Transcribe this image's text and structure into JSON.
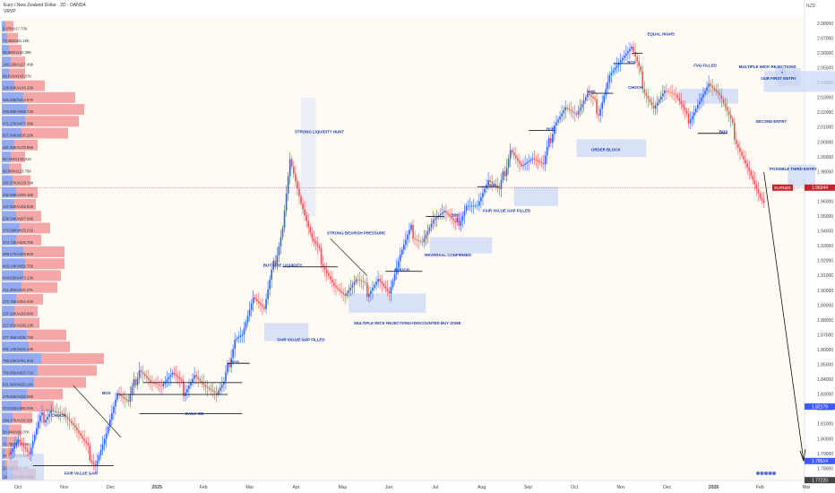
{
  "header": {
    "title": "Euro / New Zealand Dollar · 2D · OANDA",
    "indicator": "VRVP",
    "currency": "NZD"
  },
  "colors": {
    "bull": "#2962ff",
    "bear": "#ef5350",
    "zone": "#c9d6f6",
    "vp_bull": "#6f8ff0",
    "vp_bear": "#f28b8e",
    "price_tag": "#c8222b",
    "last_tag": "#3d5afe"
  },
  "chart_data": {
    "type": "candlestick",
    "instrument": "EURNZD",
    "timeframe": "2D",
    "ylim": [
      1.772,
      2.085
    ],
    "y_ticks": [
      1.78,
      1.79,
      1.8,
      1.81,
      1.82,
      1.83,
      1.84,
      1.85,
      1.86,
      1.87,
      1.88,
      1.89,
      1.9,
      1.91,
      1.92,
      1.93,
      1.94,
      1.95,
      1.96,
      1.97,
      1.98,
      1.99,
      2.0,
      2.01,
      2.02,
      2.03,
      2.04,
      2.05,
      2.06,
      2.07,
      2.08
    ],
    "x_labels": [
      "Oct",
      "Nov",
      "Dec",
      "2025",
      "Feb",
      "Mar",
      "Apr",
      "May",
      "Jun",
      "Jul",
      "Aug",
      "Sep",
      "Oct",
      "Nov",
      "Dec",
      "2026",
      "Feb",
      "Mar"
    ],
    "price_tags": [
      {
        "label": "EURNZD",
        "value": "1.96944",
        "price": 1.9694
      },
      {
        "label": "",
        "value": "1.82179",
        "price": 1.8218
      },
      {
        "label": "",
        "value": "1.78514",
        "price": 1.7851
      },
      {
        "label": "",
        "value": "1.77220",
        "price": 1.7722
      }
    ],
    "ohlc_anchors": [
      [
        0,
        1.79
      ],
      [
        6,
        1.8
      ],
      [
        12,
        1.788
      ],
      [
        18,
        1.812
      ],
      [
        24,
        1.822
      ],
      [
        30,
        1.818
      ],
      [
        36,
        1.808
      ],
      [
        42,
        1.795
      ],
      [
        48,
        1.785
      ],
      [
        54,
        1.805
      ],
      [
        60,
        1.83
      ],
      [
        66,
        1.822
      ],
      [
        72,
        1.85
      ],
      [
        78,
        1.84
      ],
      [
        84,
        1.835
      ],
      [
        90,
        1.842
      ],
      [
        96,
        1.833
      ],
      [
        102,
        1.845
      ],
      [
        108,
        1.835
      ],
      [
        114,
        1.828
      ],
      [
        118,
        1.835
      ],
      [
        124,
        1.87
      ],
      [
        128,
        1.872
      ],
      [
        134,
        1.895
      ],
      [
        140,
        1.885
      ],
      [
        144,
        1.91
      ],
      [
        150,
        1.945
      ],
      [
        154,
        1.99
      ],
      [
        160,
        1.958
      ],
      [
        166,
        1.932
      ],
      [
        172,
        1.92
      ],
      [
        178,
        1.905
      ],
      [
        184,
        1.896
      ],
      [
        190,
        1.905
      ],
      [
        196,
        1.9
      ],
      [
        202,
        1.91
      ],
      [
        208,
        1.898
      ],
      [
        214,
        1.922
      ],
      [
        220,
        1.94
      ],
      [
        226,
        1.935
      ],
      [
        232,
        1.948
      ],
      [
        238,
        1.952
      ],
      [
        244,
        1.942
      ],
      [
        250,
        1.96
      ],
      [
        256,
        1.958
      ],
      [
        262,
        1.973
      ],
      [
        268,
        1.965
      ],
      [
        274,
        1.998
      ],
      [
        280,
        1.985
      ],
      [
        286,
        1.988
      ],
      [
        292,
        1.982
      ],
      [
        298,
        2.015
      ],
      [
        304,
        2.025
      ],
      [
        310,
        2.018
      ],
      [
        316,
        2.03
      ],
      [
        322,
        2.022
      ],
      [
        328,
        2.047
      ],
      [
        334,
        2.055
      ],
      [
        340,
        2.062
      ],
      [
        346,
        2.04
      ],
      [
        352,
        2.025
      ],
      [
        358,
        2.035
      ],
      [
        364,
        2.03
      ],
      [
        370,
        2.015
      ],
      [
        376,
        2.028
      ],
      [
        382,
        2.04
      ],
      [
        388,
        2.03
      ],
      [
        394,
        2.012
      ],
      [
        398,
        2.0
      ],
      [
        404,
        1.982
      ],
      [
        410,
        1.962
      ],
      [
        412,
        1.958
      ]
    ],
    "volume_profile": [
      {
        "price": 2.078,
        "label": "9.87K/v17.73K",
        "buy": 4,
        "sell": 9
      },
      {
        "price": 2.07,
        "label": "73.25K/v81.18K",
        "buy": 6,
        "sell": 12
      },
      {
        "price": 2.062,
        "label": "85.96K/v120.39K",
        "buy": 8,
        "sell": 14
      },
      {
        "price": 2.054,
        "label": "140.19K/v127.49K",
        "buy": 10,
        "sell": 16
      },
      {
        "price": 2.046,
        "label": "98.81K/v143.67K",
        "buy": 8,
        "sell": 18
      },
      {
        "price": 2.038,
        "label": "138.96K/v148.10K",
        "buy": 14,
        "sell": 34
      },
      {
        "price": 2.03,
        "label": "405.49K/v412.97K",
        "buy": 24,
        "sell": 58
      },
      {
        "price": 2.022,
        "label": "493.88K/v595.72K",
        "buy": 28,
        "sell": 64
      },
      {
        "price": 2.014,
        "label": "471.27K/v477.36K",
        "buy": 26,
        "sell": 60
      },
      {
        "price": 2.006,
        "label": "507.64K/v530.26K",
        "buy": 22,
        "sell": 52
      },
      {
        "price": 1.998,
        "label": "187.62K/v175.96K",
        "buy": 14,
        "sell": 26
      },
      {
        "price": 1.99,
        "label": "99.74K/v133.01K",
        "buy": 10,
        "sell": 16
      },
      {
        "price": 1.982,
        "label": "80.86K/v123.76K",
        "buy": 8,
        "sell": 14
      },
      {
        "price": 1.974,
        "label": "187.07K/v218.74K",
        "buy": 12,
        "sell": 20
      },
      {
        "price": 1.966,
        "label": "230.98K/v290.18K",
        "buy": 16,
        "sell": 24
      },
      {
        "price": 1.958,
        "label": "147.55K/v155.92K",
        "buy": 14,
        "sell": 24
      },
      {
        "price": 1.95,
        "label": "238.34K/v297.94K",
        "buy": 16,
        "sell": 28
      },
      {
        "price": 1.942,
        "label": "370.26K/v415.21K",
        "buy": 20,
        "sell": 34
      },
      {
        "price": 1.934,
        "label": "374.73K/v328.78K",
        "buy": 16,
        "sell": 28
      },
      {
        "price": 1.926,
        "label": "389.27K/v439.80K",
        "buy": 24,
        "sell": 46
      },
      {
        "price": 1.918,
        "label": "403.14K/v456.75K",
        "buy": 26,
        "sell": 44
      },
      {
        "price": 1.91,
        "label": "444.03K/v473.13K",
        "buy": 24,
        "sell": 42
      },
      {
        "price": 1.902,
        "label": "411.32K/v415.27K",
        "buy": 22,
        "sell": 40
      },
      {
        "price": 1.894,
        "label": "272.76K/v394.44K",
        "buy": 16,
        "sell": 30
      },
      {
        "price": 1.886,
        "label": "237.15K/v193.80K",
        "buy": 14,
        "sell": 26
      },
      {
        "price": 1.878,
        "label": "217.45K/v236.13K",
        "buy": 14,
        "sell": 28
      },
      {
        "price": 1.87,
        "label": "477.39K/v538.76K",
        "buy": 28,
        "sell": 44
      },
      {
        "price": 1.862,
        "label": "481.14K/v522.44K",
        "buy": 30,
        "sell": 46
      },
      {
        "price": 1.854,
        "label": "750.22K/v781.81K",
        "buy": 44,
        "sell": 70
      },
      {
        "price": 1.846,
        "label": "702.85K/v826.71K",
        "buy": 40,
        "sell": 66
      },
      {
        "price": 1.838,
        "label": "611.06K/v628.12K",
        "buy": 36,
        "sell": 58
      },
      {
        "price": 1.83,
        "label": "479.84K/v433.05K",
        "buy": 28,
        "sell": 40
      },
      {
        "price": 1.822,
        "label": "374.02K/v395.00K",
        "buy": 22,
        "sell": 36
      },
      {
        "price": 1.814,
        "label": "184.47K/v119.31K",
        "buy": 12,
        "sell": 22
      },
      {
        "price": 1.806,
        "label": "99.94K/v91.07K",
        "buy": 8,
        "sell": 14
      },
      {
        "price": 1.798,
        "label": "71.73K/v76.68K",
        "buy": 6,
        "sell": 12
      },
      {
        "price": 1.79,
        "label": "40.87K/v44.55K",
        "buy": 4,
        "sell": 10
      },
      {
        "price": 1.782,
        "label": "28.28K/v63.48K",
        "buy": 4,
        "sell": 14
      },
      {
        "price": 1.776,
        "label": "183.41K/v184.25K",
        "buy": 12,
        "sell": 26
      }
    ],
    "annotations": [
      {
        "text": "STRONG LIQUIDITY HUNT",
        "price": 2.006
      },
      {
        "text": "STRONG BEARISH PRESSURE",
        "price": 1.938
      },
      {
        "text": "BUY SIDE LIQUIDITY",
        "price": 1.916
      },
      {
        "text": "FAIR VALUE GAP FILLED",
        "price": 1.866
      },
      {
        "text": "MULTIPLE WICK REJECTIONS+DISCOUNTED BUY ZONE",
        "price": 1.877
      },
      {
        "text": "CHOCH",
        "price": 1.913
      },
      {
        "text": "REVERSAL CONFIRMED",
        "price": 1.923
      },
      {
        "text": "BOS",
        "price": 1.95
      },
      {
        "text": "BOS",
        "price": 1.97
      },
      {
        "text": "FAIR VALUE GAP FILLED",
        "price": 1.953
      },
      {
        "text": "BOS",
        "price": 2.008
      },
      {
        "text": "ORDER BLOCK",
        "price": 1.994
      },
      {
        "text": "BOS",
        "price": 2.033
      },
      {
        "text": "BOS",
        "price": 2.053
      },
      {
        "text": "CHOCH",
        "price": 2.036
      },
      {
        "text": "EQUAL HIGHS",
        "price": 2.072
      },
      {
        "text": "FVG FILLED",
        "price": 2.051
      },
      {
        "text": "MULTIPLE WICK REJECTIONS",
        "price": 2.05
      },
      {
        "text": "+",
        "price": 2.046
      },
      {
        "text": "OUR FIRST ENTRY",
        "price": 2.042
      },
      {
        "text": "SECOND ENTRY",
        "price": 2.013
      },
      {
        "text": "BOS",
        "price": 2.006
      },
      {
        "text": "POSSIBLE THIRD ENTRY",
        "price": 1.981
      },
      {
        "text": "BOS",
        "price": 1.851
      },
      {
        "text": "DAILY OB",
        "price": 1.816
      },
      {
        "text": "BOS",
        "price": 1.83
      },
      {
        "text": "CHOCH",
        "price": 1.815
      },
      {
        "text": "FAIR VALUE GAP",
        "price": 1.776
      }
    ]
  }
}
